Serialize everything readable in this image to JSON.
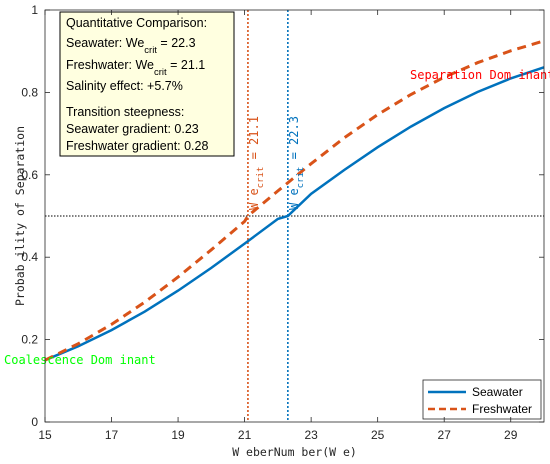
{
  "chart_data": {
    "type": "line",
    "xlabel": "W eberNum ber(W e)",
    "ylabel": "Probab ility of Separation",
    "xlim": [
      15,
      30
    ],
    "ylim": [
      0,
      1
    ],
    "xticks": [
      15,
      17,
      19,
      21,
      23,
      25,
      27,
      29
    ],
    "yticks": [
      0,
      0.2,
      0.4,
      0.6,
      0.8,
      1
    ],
    "ytick_labels": [
      "0",
      "0.2",
      "0.4",
      "0.6",
      "0.8",
      "1"
    ],
    "grid": false,
    "legend_position": "bottom-right",
    "series": [
      {
        "name": "Seawater",
        "color": "#0072BD",
        "style": "solid",
        "x": [
          15,
          16,
          17,
          18,
          19,
          20,
          21,
          22,
          22.3,
          23,
          24,
          25,
          26,
          27,
          28,
          29,
          30
        ],
        "y": [
          0.15,
          0.184,
          0.223,
          0.268,
          0.319,
          0.374,
          0.433,
          0.493,
          0.5,
          0.554,
          0.612,
          0.667,
          0.717,
          0.762,
          0.801,
          0.834,
          0.861
        ]
      },
      {
        "name": "Freshwater",
        "color": "#D95319",
        "style": "dashed",
        "x": [
          15,
          16,
          17,
          18,
          19,
          20,
          21,
          21.1,
          22,
          23,
          24,
          25,
          26,
          27,
          28,
          29,
          30
        ],
        "y": [
          0.15,
          0.19,
          0.237,
          0.291,
          0.352,
          0.418,
          0.487,
          0.5,
          0.561,
          0.627,
          0.69,
          0.746,
          0.795,
          0.837,
          0.872,
          0.901,
          0.925
        ]
      }
    ],
    "reference_lines": {
      "horizontal": {
        "y": 0.5,
        "color": "#000000",
        "style": "dotted"
      },
      "vertical": [
        {
          "x": 21.1,
          "color": "#D95319",
          "label_base": "W e",
          "label_sub": "crit",
          "label_value": " = 21.1"
        },
        {
          "x": 22.3,
          "color": "#0072BD",
          "label_base": "W e",
          "label_sub": "crit",
          "label_value": " = 22.3"
        }
      ]
    },
    "annotations": {
      "separation": {
        "text": "Separation Dom inant",
        "color": "#FF0000"
      },
      "coalescence": {
        "text": "Coalescence Dom inant",
        "color": "#00FF00"
      }
    },
    "info_box": {
      "title": "Quantitative Comparison:",
      "seawater_prefix": "Seawater: We",
      "seawater_sub": "crit",
      "seawater_value": " = 22.3",
      "freshwater_prefix": "Freshwater: We",
      "freshwater_sub": "crit",
      "freshwater_value": " = 21.1",
      "salinity": "Salinity effect: +5.7%",
      "steepness_title": "Transition steepness:",
      "seawater_gradient": "Seawater gradient: 0.23",
      "freshwater_gradient": "Freshwater gradient: 0.28",
      "background": "#FFFFE0"
    }
  }
}
